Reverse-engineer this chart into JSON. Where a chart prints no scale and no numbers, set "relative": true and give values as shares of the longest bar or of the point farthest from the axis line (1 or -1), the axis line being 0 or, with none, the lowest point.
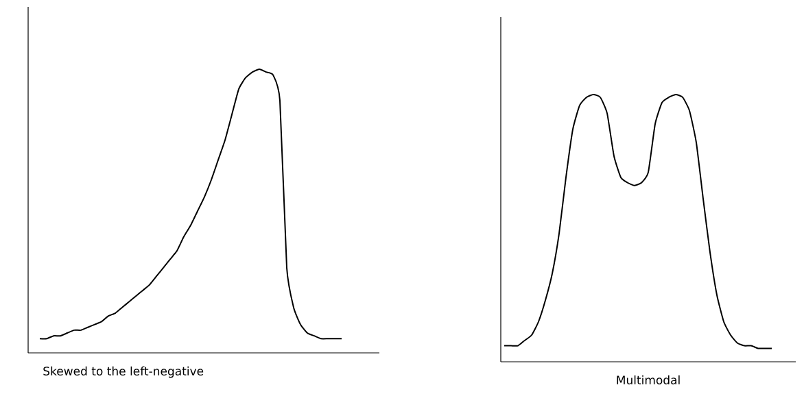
{
  "chart_data": [
    {
      "type": "line",
      "relative": true,
      "xlabel": "Skewed to the left-negative",
      "color": "#000000",
      "marker": "none",
      "categories": [
        null,
        null,
        null,
        null,
        null,
        null,
        null,
        null,
        null,
        null,
        null,
        null,
        null,
        null,
        null,
        null,
        null,
        null,
        null,
        null,
        null,
        null,
        null,
        null,
        null,
        null,
        null,
        null,
        null,
        null,
        null,
        null,
        null,
        null,
        null,
        null,
        null,
        null,
        null,
        null,
        null,
        null,
        null,
        null,
        null
      ],
      "values": [
        0.05,
        0.05,
        0.06,
        0.06,
        0.07,
        0.08,
        0.08,
        0.09,
        0.1,
        0.11,
        0.13,
        0.14,
        0.16,
        0.18,
        0.2,
        0.22,
        0.24,
        0.27,
        0.3,
        0.33,
        0.36,
        0.41,
        0.45,
        0.5,
        0.55,
        0.61,
        0.68,
        0.75,
        0.84,
        0.93,
        0.97,
        0.99,
        1,
        0.99,
        0.98,
        0.89,
        0.3,
        0.16,
        0.1,
        0.07,
        0.06,
        0.05,
        0.05,
        0.05,
        0.05
      ]
    },
    {
      "type": "line",
      "relative": true,
      "xlabel": "Multimodal",
      "color": "#000000",
      "marker": "none",
      "categories": [
        null,
        null,
        null,
        null,
        null,
        null,
        null,
        null,
        null,
        null,
        null,
        null,
        null,
        null,
        null,
        null,
        null,
        null,
        null,
        null,
        null,
        null,
        null,
        null,
        null,
        null,
        null,
        null,
        null,
        null,
        null,
        null,
        null,
        null,
        null,
        null,
        null,
        null,
        null,
        null
      ],
      "values": [
        0.06,
        0.06,
        0.06,
        0.08,
        0.1,
        0.15,
        0.23,
        0.33,
        0.48,
        0.69,
        0.87,
        0.96,
        0.99,
        1,
        0.99,
        0.93,
        0.77,
        0.69,
        0.67,
        0.66,
        0.67,
        0.71,
        0.89,
        0.97,
        0.99,
        1,
        0.99,
        0.94,
        0.82,
        0.61,
        0.41,
        0.25,
        0.15,
        0.1,
        0.07,
        0.06,
        0.06,
        0.05,
        0.05,
        0.05
      ]
    }
  ]
}
